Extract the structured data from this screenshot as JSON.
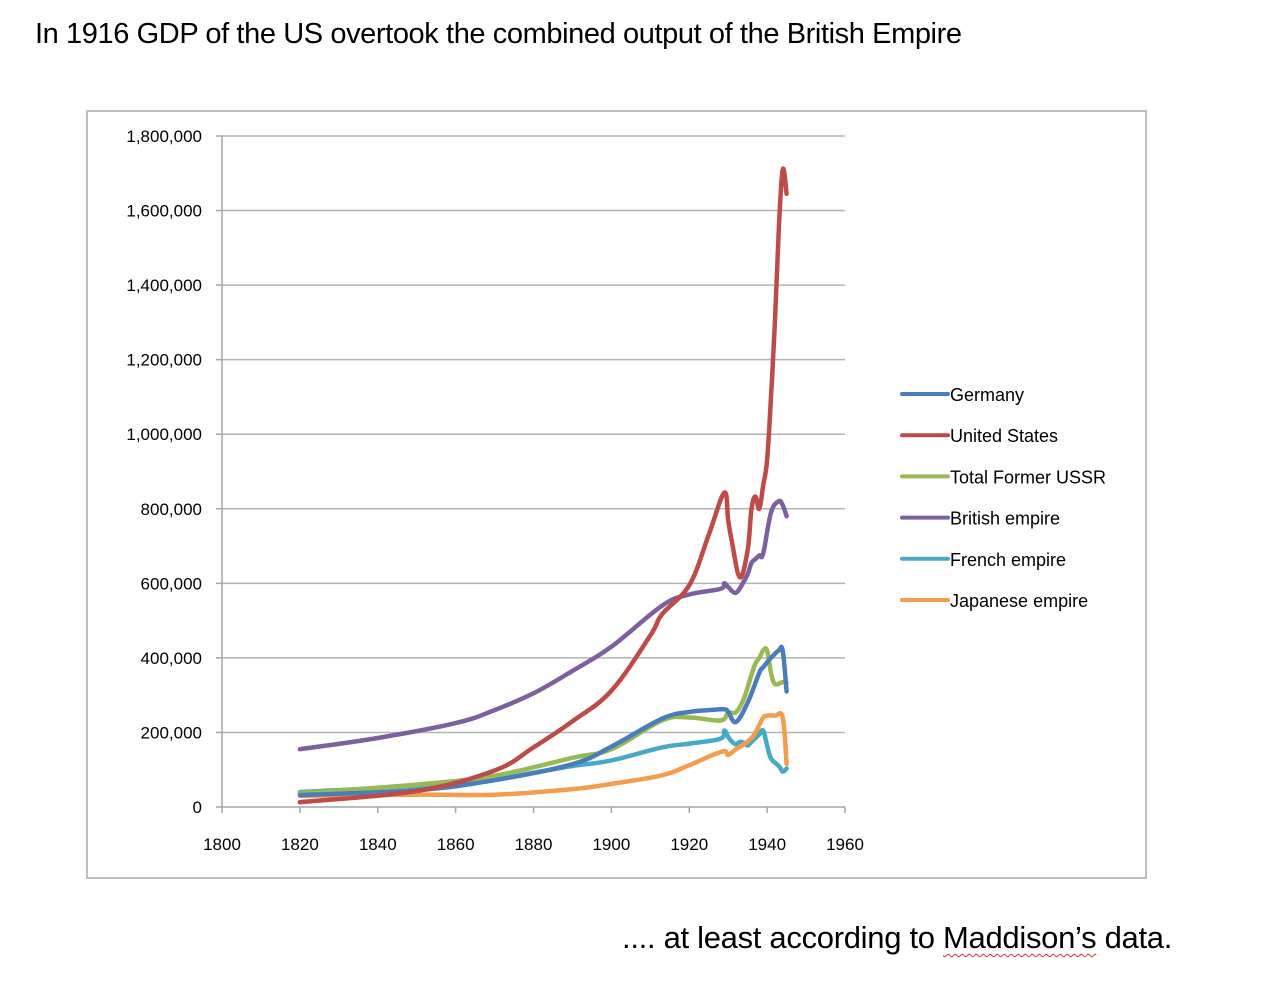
{
  "slide": {
    "title": "In 1916 GDP of the US overtook the combined output of the British Empire",
    "footnote_prefix": ".... at least according to ",
    "footnote_name": "Maddison’s",
    "footnote_suffix": " data."
  },
  "chart_data": {
    "type": "line",
    "title": "",
    "xlabel": "",
    "ylabel": "",
    "xlim": [
      1800,
      1960
    ],
    "ylim": [
      0,
      1800000
    ],
    "grid": true,
    "legend_position": "right",
    "x_ticks": [
      "1800",
      "1820",
      "1840",
      "1860",
      "1880",
      "1900",
      "1920",
      "1940",
      "1960"
    ],
    "y_ticks": [
      "0",
      "200,000",
      "400,000",
      "600,000",
      "800,000",
      "1,000,000",
      "1,200,000",
      "1,400,000",
      "1,600,000",
      "1,800,000"
    ],
    "series": [
      {
        "name": "Germany",
        "color": "#4a7ebb",
        "x": [
          1820,
          1850,
          1870,
          1890,
          1900,
          1913,
          1920,
          1925,
          1929,
          1930,
          1932,
          1935,
          1938,
          1939,
          1941,
          1943,
          1944,
          1945
        ],
        "y": [
          32000,
          45000,
          72000,
          115000,
          162000,
          237000,
          255000,
          260000,
          262000,
          255000,
          228000,
          280000,
          360000,
          375000,
          400000,
          420000,
          420000,
          310000
        ]
      },
      {
        "name": "United States",
        "color": "#be4b48",
        "x": [
          1820,
          1850,
          1870,
          1880,
          1890,
          1900,
          1910,
          1913,
          1920,
          1925,
          1929,
          1930,
          1931,
          1933,
          1935,
          1936,
          1937,
          1938,
          1939,
          1940,
          1941,
          1942,
          1943,
          1944,
          1945
        ],
        "y": [
          13000,
          43000,
          98000,
          160000,
          230000,
          312000,
          460000,
          517000,
          595000,
          730000,
          843000,
          769000,
          709000,
          616000,
          690000,
          800000,
          833000,
          800000,
          863000,
          930000,
          1100000,
          1300000,
          1550000,
          1710000,
          1645000
        ]
      },
      {
        "name": "Total Former USSR",
        "color": "#98b954",
        "x": [
          1820,
          1850,
          1870,
          1890,
          1900,
          1913,
          1920,
          1928,
          1930,
          1932,
          1934,
          1936,
          1937,
          1938,
          1939,
          1940,
          1941,
          1942,
          1944,
          1945
        ],
        "y": [
          37000,
          60000,
          84000,
          132000,
          155000,
          232000,
          240000,
          232000,
          253000,
          254000,
          290000,
          355000,
          385000,
          400000,
          420000,
          420000,
          360000,
          330000,
          335000,
          333000
        ]
      },
      {
        "name": "British empire",
        "color": "#7d60a0",
        "x": [
          1820,
          1840,
          1860,
          1870,
          1880,
          1890,
          1900,
          1913,
          1920,
          1928,
          1929,
          1930,
          1932,
          1934,
          1935,
          1936,
          1937,
          1938,
          1939,
          1941,
          1943,
          1944,
          1945
        ],
        "y": [
          155000,
          185000,
          225000,
          260000,
          305000,
          365000,
          430000,
          540000,
          570000,
          585000,
          600000,
          590000,
          575000,
          605000,
          625000,
          655000,
          665000,
          675000,
          680000,
          790000,
          820000,
          810000,
          780000
        ]
      },
      {
        "name": "French empire",
        "color": "#46aac5",
        "x": [
          1820,
          1850,
          1870,
          1880,
          1890,
          1900,
          1913,
          1920,
          1928,
          1929,
          1930,
          1931,
          1932,
          1933,
          1934,
          1935,
          1936,
          1937,
          1938,
          1939,
          1940,
          1941,
          1943,
          1944,
          1945
        ],
        "y": [
          40000,
          57000,
          75000,
          92000,
          110000,
          125000,
          160000,
          170000,
          183000,
          205000,
          188000,
          175000,
          168000,
          175000,
          172000,
          165000,
          175000,
          185000,
          195000,
          205000,
          165000,
          130000,
          110000,
          95000,
          103000
        ]
      },
      {
        "name": "Japanese empire",
        "color": "#f59c4d",
        "x": [
          1820,
          1850,
          1870,
          1890,
          1900,
          1913,
          1920,
          1925,
          1929,
          1930,
          1932,
          1934,
          1936,
          1937,
          1938,
          1939,
          1940,
          1942,
          1944,
          1945
        ],
        "y": [
          30000,
          33000,
          33000,
          48000,
          62000,
          85000,
          112000,
          135000,
          150000,
          140000,
          155000,
          168000,
          185000,
          200000,
          220000,
          240000,
          245000,
          245000,
          240000,
          115000
        ]
      }
    ]
  }
}
